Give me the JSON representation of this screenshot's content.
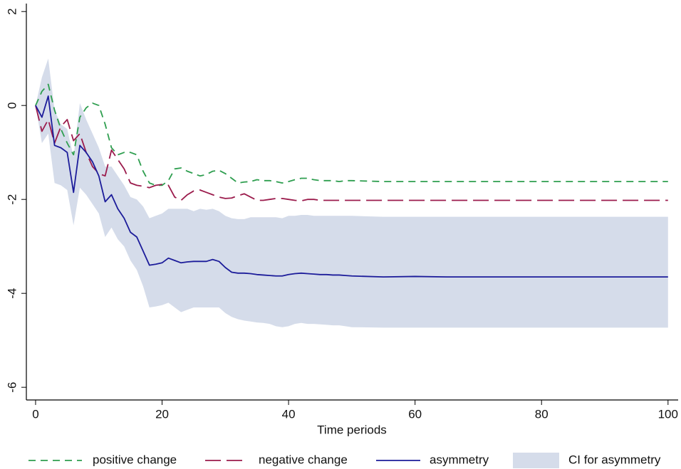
{
  "chart_data": {
    "type": "line",
    "x_label": "Time periods",
    "x": [
      0,
      1,
      2,
      3,
      4,
      5,
      6,
      7,
      8,
      9,
      10,
      11,
      12,
      13,
      14,
      15,
      16,
      17,
      18,
      19,
      20,
      21,
      22,
      23,
      24,
      25,
      26,
      27,
      28,
      29,
      30,
      31,
      32,
      33,
      34,
      35,
      36,
      37,
      38,
      39,
      40,
      41,
      42,
      43,
      44,
      45,
      46,
      47,
      48,
      49,
      50,
      55,
      60,
      65,
      70,
      75,
      80,
      85,
      90,
      95,
      100
    ],
    "xlim": [
      -1.46,
      101.6
    ],
    "xticks": [
      0,
      20,
      40,
      60,
      80,
      100
    ],
    "ylim": [
      -6.27,
      2.17
    ],
    "yticks": [
      -6,
      -4,
      -2,
      0,
      2
    ],
    "series": [
      {
        "name": "positive change",
        "color": "#2e9e4f",
        "dash": "10,7",
        "values": [
          0,
          0.3,
          0.45,
          -0.1,
          -0.5,
          -0.8,
          -1.05,
          -0.25,
          -0.05,
          0.05,
          0,
          -0.4,
          -0.9,
          -1.05,
          -1,
          -1,
          -1.05,
          -1.4,
          -1.65,
          -1.7,
          -1.7,
          -1.6,
          -1.35,
          -1.33,
          -1.4,
          -1.45,
          -1.5,
          -1.47,
          -1.4,
          -1.38,
          -1.45,
          -1.55,
          -1.65,
          -1.63,
          -1.62,
          -1.58,
          -1.6,
          -1.6,
          -1.62,
          -1.65,
          -1.62,
          -1.58,
          -1.55,
          -1.55,
          -1.58,
          -1.6,
          -1.6,
          -1.6,
          -1.62,
          -1.6,
          -1.6,
          -1.62,
          -1.62,
          -1.62,
          -1.62,
          -1.62,
          -1.62,
          -1.62,
          -1.62,
          -1.62,
          -1.62
        ]
      },
      {
        "name": "negative change",
        "color": "#9b1b4c",
        "dash": "22,8",
        "values": [
          0,
          -0.55,
          -0.3,
          -0.8,
          -0.45,
          -0.3,
          -0.75,
          -0.6,
          -1,
          -1.3,
          -1.45,
          -1.5,
          -0.95,
          -1.15,
          -1.35,
          -1.65,
          -1.7,
          -1.72,
          -1.75,
          -1.7,
          -1.68,
          -1.7,
          -1.95,
          -2.02,
          -1.9,
          -1.82,
          -1.8,
          -1.85,
          -1.9,
          -1.95,
          -1.98,
          -1.97,
          -1.92,
          -1.88,
          -1.95,
          -2.02,
          -2.02,
          -2,
          -1.98,
          -1.98,
          -2,
          -2.02,
          -2.03,
          -2,
          -2,
          -2.02,
          -2.02,
          -2.02,
          -2.02,
          -2.02,
          -2.02,
          -2.02,
          -2.02,
          -2.02,
          -2.02,
          -2.02,
          -2.02,
          -2.02,
          -2.02,
          -2.02,
          -2.02
        ]
      },
      {
        "name": "asymmetry",
        "color": "#1c1c9a",
        "values": [
          0,
          -0.25,
          0.2,
          -0.85,
          -0.9,
          -1,
          -1.85,
          -0.85,
          -1,
          -1.2,
          -1.5,
          -2.05,
          -1.9,
          -2.2,
          -2.4,
          -2.7,
          -2.8,
          -3.1,
          -3.4,
          -3.38,
          -3.35,
          -3.25,
          -3.3,
          -3.35,
          -3.33,
          -3.32,
          -3.32,
          -3.32,
          -3.28,
          -3.32,
          -3.45,
          -3.55,
          -3.57,
          -3.57,
          -3.58,
          -3.6,
          -3.61,
          -3.62,
          -3.63,
          -3.63,
          -3.6,
          -3.58,
          -3.57,
          -3.58,
          -3.59,
          -3.6,
          -3.6,
          -3.61,
          -3.61,
          -3.62,
          -3.63,
          -3.65,
          -3.64,
          -3.65,
          -3.65,
          -3.65,
          -3.65,
          -3.65,
          -3.65,
          -3.65,
          -3.65
        ]
      },
      {
        "name": "CI for asymmetry",
        "color": "#d5dcea",
        "band": true,
        "upper": [
          0,
          0.6,
          1,
          -0.1,
          -0.4,
          -0.5,
          -1.1,
          0.05,
          -0.3,
          -0.6,
          -0.9,
          -1.3,
          -1.3,
          -1.5,
          -1.7,
          -1.95,
          -2,
          -2.15,
          -2.4,
          -2.35,
          -2.3,
          -2.2,
          -2.2,
          -2.2,
          -2.2,
          -2.25,
          -2.2,
          -2.22,
          -2.2,
          -2.25,
          -2.35,
          -2.4,
          -2.42,
          -2.42,
          -2.38,
          -2.38,
          -2.38,
          -2.38,
          -2.38,
          -2.4,
          -2.35,
          -2.35,
          -2.33,
          -2.33,
          -2.35,
          -2.35,
          -2.35,
          -2.35,
          -2.35,
          -2.35,
          -2.35,
          -2.37,
          -2.37,
          -2.37,
          -2.37,
          -2.37,
          -2.37,
          -2.37,
          -2.37,
          -2.37,
          -2.37
        ],
        "lower": [
          0,
          -0.8,
          -0.6,
          -1.65,
          -1.7,
          -1.8,
          -2.55,
          -1.75,
          -1.9,
          -2.1,
          -2.3,
          -2.8,
          -2.6,
          -2.85,
          -3,
          -3.3,
          -3.5,
          -3.85,
          -4.3,
          -4.28,
          -4.25,
          -4.2,
          -4.3,
          -4.4,
          -4.35,
          -4.3,
          -4.3,
          -4.3,
          -4.3,
          -4.3,
          -4.42,
          -4.5,
          -4.55,
          -4.58,
          -4.6,
          -4.62,
          -4.63,
          -4.65,
          -4.7,
          -4.72,
          -4.7,
          -4.65,
          -4.63,
          -4.65,
          -4.65,
          -4.66,
          -4.67,
          -4.68,
          -4.68,
          -4.7,
          -4.72,
          -4.73,
          -4.73,
          -4.73,
          -4.73,
          -4.73,
          -4.73,
          -4.73,
          -4.73,
          -4.73,
          -4.73
        ]
      }
    ]
  }
}
